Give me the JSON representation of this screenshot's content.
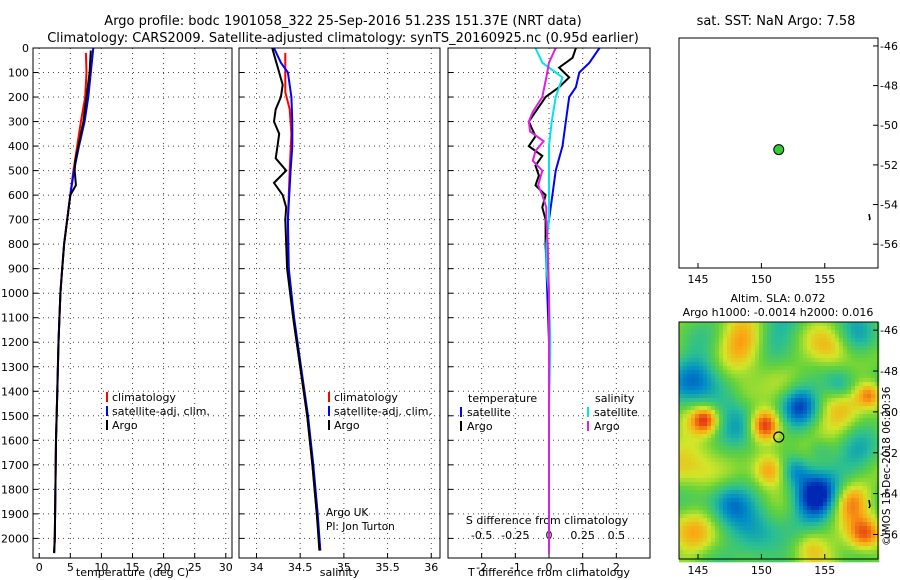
{
  "title_line1": "Argo profile: bodc 1901058_322 25-Sep-2016 51.23S 151.37E (NRT data)",
  "title_line2": "Climatology: CARS2009. Satellite-adjusted climatology: synTS_20160925.nc (0.95d earlier)",
  "colors": {
    "climatology": "#ff0000",
    "satellite": "#0000ff",
    "argo": "#000000",
    "s_satellite": "#00e5e5",
    "s_argo": "#e020e0",
    "marker": "#33cc33"
  },
  "depth_ticks": [
    "0",
    "100",
    "200",
    "300",
    "400",
    "500",
    "600",
    "700",
    "800",
    "900",
    "1000",
    "1100",
    "1200",
    "1300",
    "1400",
    "1500",
    "1600",
    "1700",
    "1800",
    "1900",
    "2000"
  ],
  "chart_data": [
    {
      "type": "line",
      "name": "temperature-panel",
      "xlabel": "temperature (deg C)",
      "xlim": [
        -1,
        31
      ],
      "ylim": [
        2080,
        0
      ],
      "xticks": [
        "0",
        "5",
        "10",
        "15",
        "20",
        "25",
        "30"
      ],
      "ylabel": "",
      "legend": {
        "items": [
          "climatology",
          "satellite-adj. clim.",
          "Argo"
        ],
        "placement": "lower-right"
      },
      "series": [
        {
          "name": "climatology",
          "depth": [
            20,
            100,
            200,
            300,
            400,
            500,
            600,
            700,
            800,
            900,
            1000,
            1200,
            1400,
            1600,
            1800,
            2000,
            2060
          ],
          "values": [
            7.5,
            7.6,
            7.4,
            6.7,
            6.1,
            5.5,
            5.0,
            4.5,
            4.0,
            3.7,
            3.4,
            3.1,
            2.9,
            2.7,
            2.6,
            2.5,
            2.4
          ]
        },
        {
          "name": "satellite-adj. clim.",
          "depth": [
            0,
            100,
            200,
            300,
            400,
            500,
            600,
            700,
            800,
            900,
            1000,
            1200,
            1400,
            1600,
            1800,
            2000,
            2060
          ],
          "values": [
            8.7,
            8.3,
            7.9,
            7.3,
            6.4,
            5.6,
            5.0,
            4.5,
            4.0,
            3.7,
            3.4,
            3.1,
            2.9,
            2.7,
            2.6,
            2.5,
            2.4
          ]
        },
        {
          "name": "Argo",
          "depth": [
            10,
            100,
            200,
            300,
            400,
            460,
            500,
            560,
            600,
            700,
            800,
            900,
            1000,
            1200,
            1400,
            1600,
            1800,
            2000,
            2060
          ],
          "values": [
            8.3,
            8.1,
            7.6,
            7.1,
            6.3,
            5.8,
            5.7,
            5.9,
            5.0,
            4.5,
            4.0,
            3.7,
            3.4,
            3.1,
            2.9,
            2.7,
            2.6,
            2.5,
            2.4
          ]
        }
      ]
    },
    {
      "type": "line",
      "name": "salinity-panel",
      "xlabel": "salinity",
      "xlim": [
        33.8,
        36.1
      ],
      "ylim": [
        2080,
        0
      ],
      "xticks": [
        "34",
        "34.5",
        "35",
        "35.5",
        "36"
      ],
      "legend": {
        "items": [
          "climatology",
          "satellite-adj. clim.",
          "Argo"
        ],
        "placement": "lower-right"
      },
      "annotation_line1": "Argo UK",
      "annotation_line2": "PI: Jon Turton",
      "series": [
        {
          "name": "climatology",
          "depth": [
            20,
            100,
            180,
            250,
            350,
            500,
            700,
            900,
            1100,
            1300,
            1500,
            1700,
            1900,
            2050
          ],
          "values": [
            34.33,
            34.33,
            34.33,
            34.38,
            34.4,
            34.38,
            34.36,
            34.36,
            34.42,
            34.5,
            34.58,
            34.64,
            34.69,
            34.73
          ]
        },
        {
          "name": "satellite-adj. clim.",
          "depth": [
            0,
            60,
            100,
            200,
            300,
            400,
            500,
            700,
            900,
            1100,
            1300,
            1500,
            1700,
            1900,
            2050
          ],
          "values": [
            34.2,
            34.28,
            34.36,
            34.4,
            34.41,
            34.41,
            34.39,
            34.36,
            34.37,
            34.43,
            34.51,
            34.59,
            34.65,
            34.7,
            34.73
          ]
        },
        {
          "name": "Argo",
          "depth": [
            0,
            50,
            100,
            150,
            200,
            250,
            300,
            350,
            400,
            450,
            500,
            550,
            600,
            650,
            700,
            800,
            900,
            1100,
            1300,
            1500,
            1700,
            1900,
            2050
          ],
          "values": [
            34.18,
            34.22,
            34.26,
            34.3,
            34.28,
            34.22,
            34.2,
            34.26,
            34.24,
            34.22,
            34.34,
            34.2,
            34.3,
            34.34,
            34.33,
            34.34,
            34.35,
            34.42,
            34.5,
            34.58,
            34.64,
            34.69,
            34.72
          ]
        }
      ]
    },
    {
      "type": "line",
      "name": "difference-panel",
      "xlabel": "T difference from climatology",
      "xlabel_top": "S difference from climatology",
      "xlim": [
        -3,
        3
      ],
      "ylim": [
        2080,
        0
      ],
      "xticks": [
        "-2",
        "-1",
        "0",
        "1",
        "2"
      ],
      "xticks_top": [
        "-0.5",
        "-0.25",
        "0",
        "0.25",
        "0.5"
      ],
      "legend": {
        "left_heading": "temperature",
        "right_heading": "salinity",
        "left_items": [
          "satellite",
          "Argo"
        ],
        "right_items": [
          "satellite",
          "Argo"
        ]
      },
      "series": [
        {
          "name": "T satellite",
          "depth": [
            0,
            60,
            100,
            160,
            200,
            300,
            400,
            500,
            600,
            700,
            800,
            1000,
            1200,
            1500,
            1800,
            2060
          ],
          "values": [
            1.5,
            1.2,
            0.9,
            0.8,
            0.6,
            0.5,
            0.4,
            0.2,
            0.1,
            0.0,
            -0.1,
            -0.05,
            0.0,
            0.0,
            0.0,
            0.0
          ]
        },
        {
          "name": "T Argo",
          "depth": [
            0,
            40,
            80,
            120,
            160,
            200,
            260,
            300,
            360,
            400,
            440,
            480,
            520,
            560,
            600,
            650,
            700,
            800,
            1000,
            1200,
            1500,
            1800,
            2060
          ],
          "values": [
            0.8,
            0.7,
            0.3,
            0.6,
            0.3,
            -0.1,
            -0.4,
            -0.6,
            -0.4,
            -0.6,
            -0.2,
            -0.4,
            -0.3,
            -0.4,
            -0.1,
            -0.2,
            -0.1,
            -0.1,
            0.0,
            0.0,
            0.0,
            0.0,
            0.0
          ]
        },
        {
          "name": "S satellite",
          "depth": [
            0,
            60,
            120,
            200,
            300,
            400,
            500,
            600,
            700,
            800,
            900,
            1000,
            1200,
            1500,
            1800,
            2000,
            2060
          ],
          "values": [
            -0.1,
            -0.05,
            0.1,
            0.05,
            0.02,
            0.0,
            0.0,
            0.0,
            0.0,
            -0.02,
            -0.02,
            0.0,
            0.01,
            0.0,
            0.0,
            0.0,
            0.0
          ]
        },
        {
          "name": "S Argo",
          "depth": [
            0,
            60,
            120,
            200,
            260,
            300,
            340,
            380,
            420,
            460,
            500,
            560,
            600,
            650,
            700,
            800,
            1000,
            1200,
            1500,
            1800,
            2060
          ],
          "values": [
            0.05,
            0.0,
            -0.02,
            -0.05,
            -0.12,
            -0.15,
            -0.14,
            -0.04,
            -0.1,
            -0.12,
            -0.05,
            -0.08,
            -0.05,
            -0.02,
            -0.02,
            -0.01,
            0.0,
            0.0,
            0.0,
            0.0,
            0.0
          ]
        }
      ]
    },
    {
      "type": "scatter",
      "name": "sst-map",
      "title": "sat. SST: NaN Argo: 7.58",
      "xlim": [
        143.5,
        159.2
      ],
      "ylim": [
        -57.2,
        -45.6
      ],
      "xticks": [
        "145",
        "150",
        "155"
      ],
      "yticks": [
        "-46",
        "-48",
        "-50",
        "-52",
        "-54",
        "-56"
      ],
      "points": [
        {
          "lon": 151.37,
          "lat": -51.23
        }
      ]
    },
    {
      "type": "heatmap",
      "name": "sla-map",
      "title_line1": "Altim. SLA: 0.072",
      "title_line2": "Argo h1000: -0.0014 h2000: 0.016",
      "xlim": [
        143.5,
        159.2
      ],
      "ylim": [
        -57.2,
        -45.6
      ],
      "xticks": [
        "145",
        "150",
        "155"
      ],
      "yticks": [
        "-46",
        "-48",
        "-50",
        "-52",
        "-54",
        "-56"
      ],
      "points": [
        {
          "lon": 151.37,
          "lat": -51.23
        }
      ],
      "credit": "©IMOS 13-Dec-2018 06:20:36"
    }
  ]
}
